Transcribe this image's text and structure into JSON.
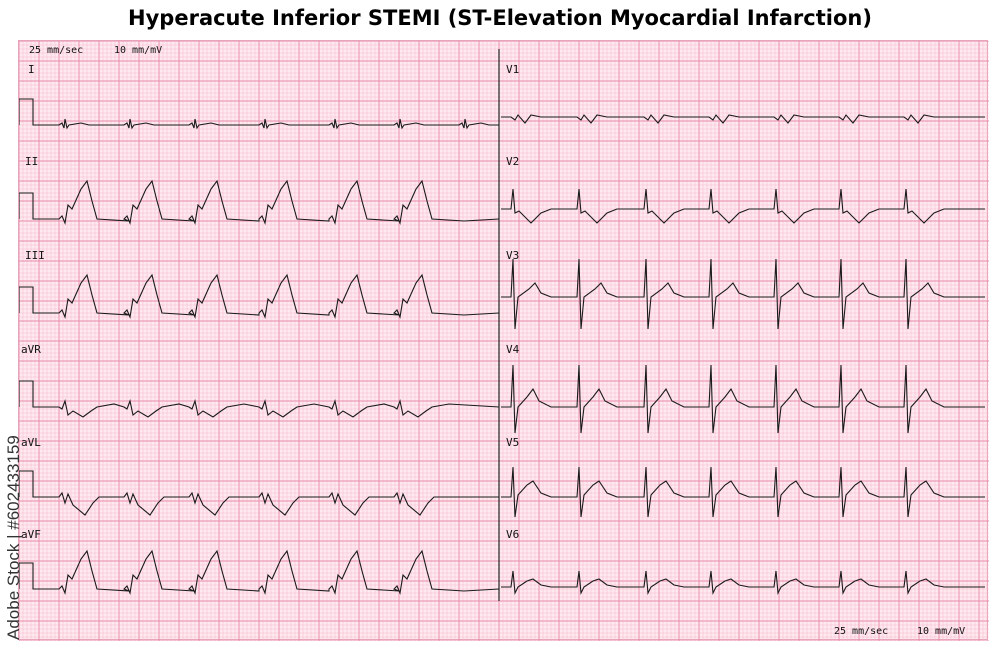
{
  "title": "Hyperacute Inferior STEMI (ST-Elevation Myocardial Infarction)",
  "calibration": {
    "speed": "25 mm/sec",
    "gain": "10 mm/mV"
  },
  "watermark": "Adobe Stock | #602433159",
  "grid": {
    "minor_color": "#f7b5c9",
    "major_color": "#e98aa8",
    "paper_color": "#fde9ef"
  },
  "leads_left": [
    "I",
    "II",
    "III",
    "aVR",
    "aVL",
    "aVF"
  ],
  "leads_right": [
    "V1",
    "V2",
    "V3",
    "V4",
    "V5",
    "V6"
  ]
}
